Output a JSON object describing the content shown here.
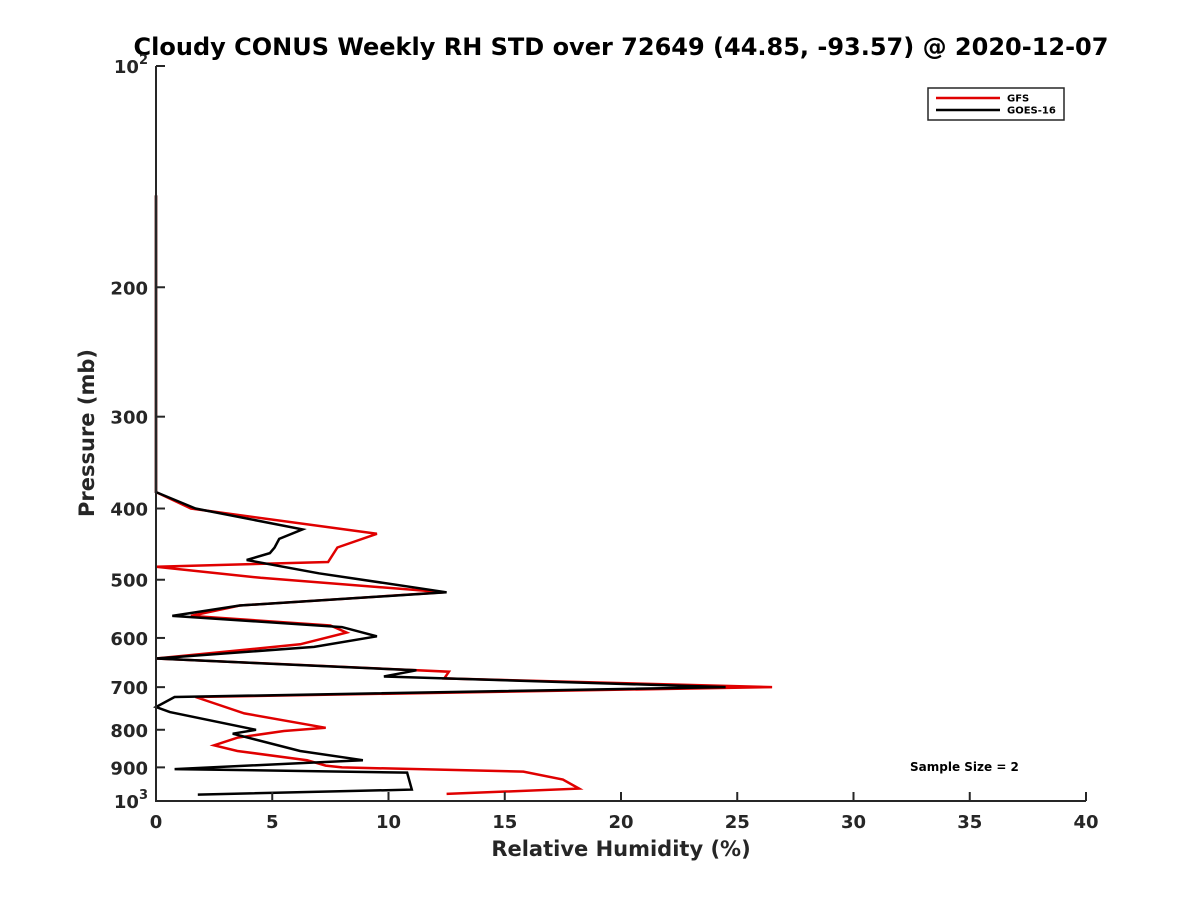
{
  "chart_data": {
    "type": "line",
    "title": "Cloudy CONUS Weekly RH STD over 72649 (44.85, -93.57) @ 2020-12-07",
    "xlabel": "Relative Humidity (%)",
    "ylabel": "Pressure (mb)",
    "xlim": [
      0,
      40
    ],
    "ylim": [
      100,
      1000
    ],
    "yscale": "log",
    "yaxis_reversed": true,
    "grid": false,
    "legend_position": "top-right",
    "x_ticks": [
      "0",
      "5",
      "10",
      "15",
      "20",
      "25",
      "30",
      "35",
      "40"
    ],
    "y_ticks": [
      {
        "value": 100,
        "base": "10",
        "exp": "2"
      },
      {
        "value": 200,
        "label": "200"
      },
      {
        "value": 300,
        "label": "300"
      },
      {
        "value": 400,
        "label": "400"
      },
      {
        "value": 500,
        "label": "500"
      },
      {
        "value": 600,
        "label": "600"
      },
      {
        "value": 700,
        "label": "700"
      },
      {
        "value": 800,
        "label": "800"
      },
      {
        "value": 900,
        "label": "900"
      },
      {
        "value": 1000,
        "base": "10",
        "exp": "3"
      }
    ],
    "annotation": "Sample Size = 2",
    "series": [
      {
        "name": "GFS",
        "color": "#e00000",
        "points": [
          [
            0,
            150
          ],
          [
            0,
            380
          ],
          [
            1.5,
            400
          ],
          [
            9.5,
            433
          ],
          [
            7.8,
            452
          ],
          [
            7.4,
            473
          ],
          [
            0,
            480
          ],
          [
            4.5,
            497
          ],
          [
            12.4,
            520
          ],
          [
            3.6,
            542
          ],
          [
            1.5,
            560
          ],
          [
            7.5,
            577
          ],
          [
            8.2,
            590
          ],
          [
            6.2,
            612
          ],
          [
            0,
            640
          ],
          [
            12.6,
            667
          ],
          [
            12.4,
            681
          ],
          [
            26.5,
            700
          ],
          [
            1.7,
            722
          ],
          [
            3.8,
            760
          ],
          [
            7.3,
            795
          ],
          [
            5.5,
            803
          ],
          [
            3.5,
            820
          ],
          [
            2.5,
            840
          ],
          [
            3.5,
            855
          ],
          [
            6.5,
            880
          ],
          [
            7.3,
            895
          ],
          [
            8.0,
            900
          ],
          [
            15.8,
            912
          ],
          [
            17.5,
            935
          ],
          [
            18.2,
            962
          ],
          [
            12.5,
            978
          ]
        ]
      },
      {
        "name": "GOES-16",
        "color": "#000000",
        "points": [
          [
            0,
            150
          ],
          [
            0,
            380
          ],
          [
            1.7,
            400
          ],
          [
            6.3,
            427
          ],
          [
            5.3,
            440
          ],
          [
            5.1,
            452
          ],
          [
            4.9,
            460
          ],
          [
            3.9,
            470
          ],
          [
            7.0,
            490
          ],
          [
            12.5,
            520
          ],
          [
            3.6,
            542
          ],
          [
            0.7,
            560
          ],
          [
            8.0,
            580
          ],
          [
            9.5,
            597
          ],
          [
            6.8,
            617
          ],
          [
            0,
            640
          ],
          [
            11.2,
            664
          ],
          [
            9.8,
            677
          ],
          [
            24.5,
            700
          ],
          [
            0.8,
            722
          ],
          [
            0,
            745
          ],
          [
            0.6,
            757
          ],
          [
            4.3,
            800
          ],
          [
            3.3,
            810
          ],
          [
            6.2,
            855
          ],
          [
            8.9,
            880
          ],
          [
            0.8,
            905
          ],
          [
            10.8,
            915
          ],
          [
            11.0,
            965
          ],
          [
            1.8,
            980
          ]
        ]
      }
    ]
  }
}
